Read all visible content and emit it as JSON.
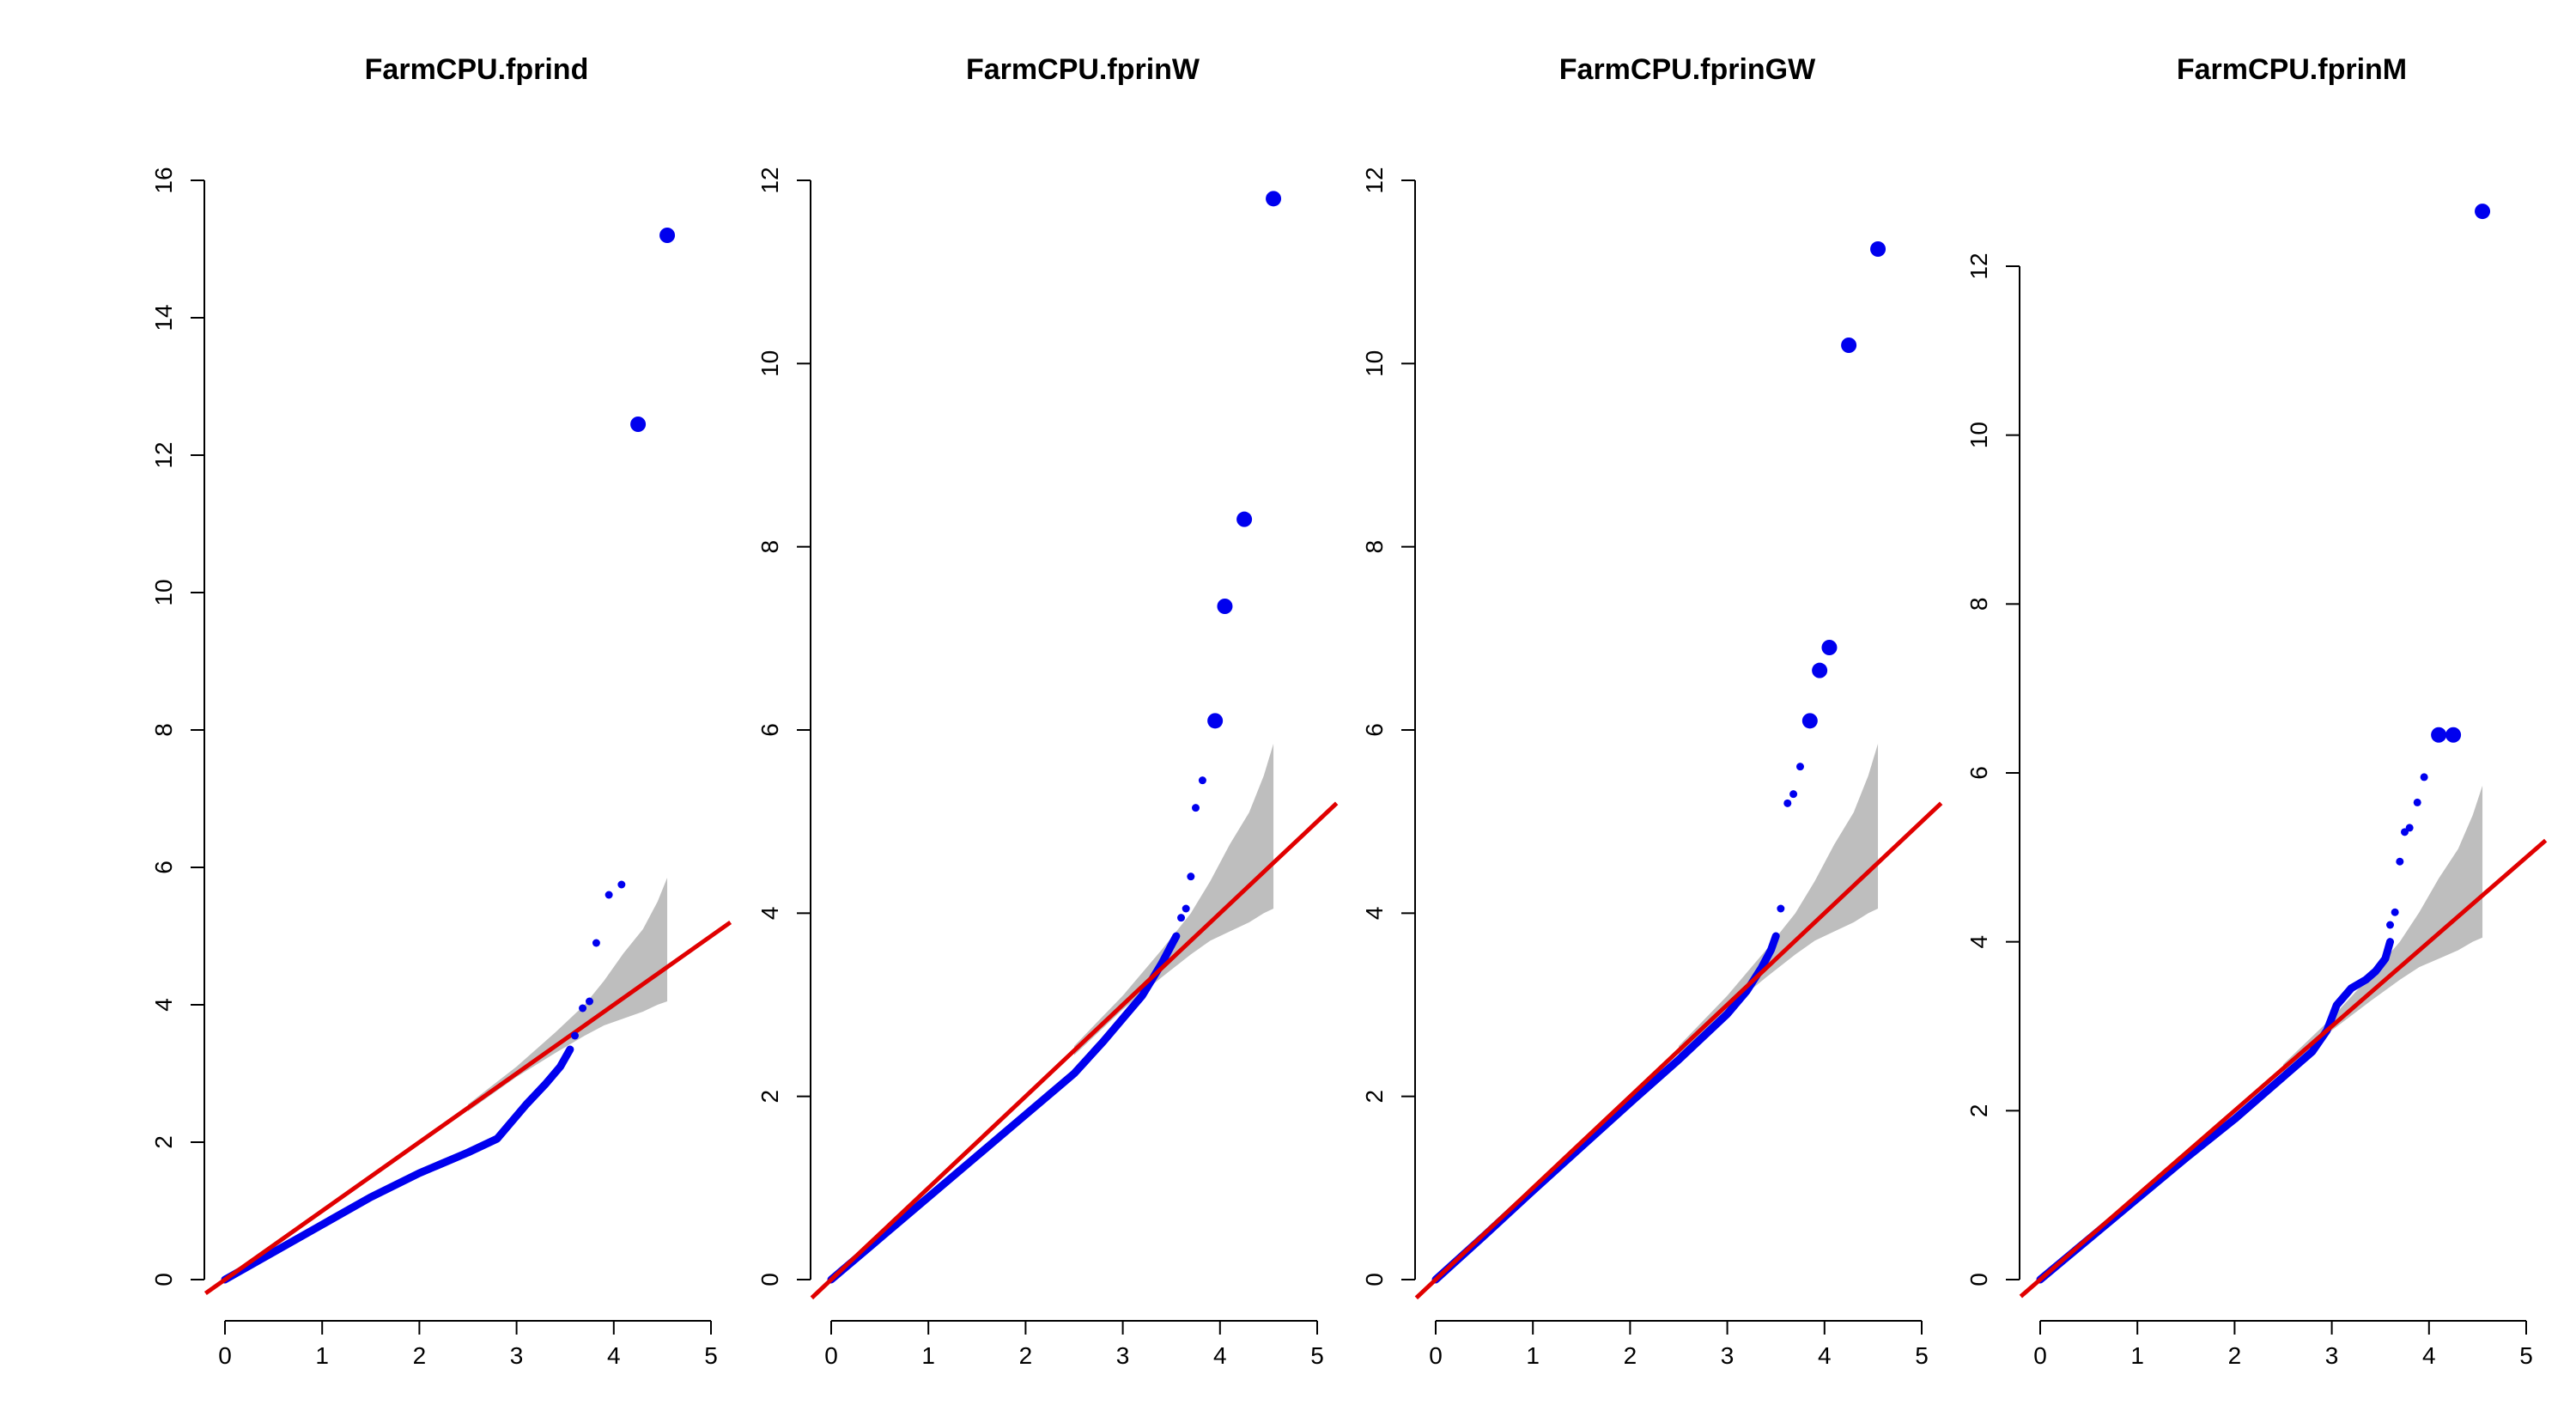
{
  "colors": {
    "points": "#0000ee",
    "reference_line": "#e00000",
    "confidence_band": "#bebebe",
    "axis": "#000000"
  },
  "chart_data": [
    {
      "type": "scatter",
      "title": "FarmCPU.fprind",
      "xlabel": "",
      "ylabel": "",
      "xlim": [
        0,
        5
      ],
      "ylim": [
        0,
        16
      ],
      "x_ticks": [
        "0",
        "1",
        "2",
        "3",
        "4",
        "5"
      ],
      "y_ticks": [
        "0",
        "2",
        "4",
        "6",
        "8",
        "10",
        "12",
        "14",
        "16"
      ],
      "reference_line": {
        "slope": 1,
        "intercept": 0
      },
      "confidence_band": {
        "x": [
          2.5,
          3.0,
          3.4,
          3.7,
          3.9,
          4.1,
          4.3,
          4.45,
          4.55
        ],
        "upper": [
          2.55,
          3.1,
          3.6,
          4.0,
          4.35,
          4.75,
          5.1,
          5.5,
          5.85
        ],
        "lower": [
          2.45,
          2.95,
          3.3,
          3.55,
          3.7,
          3.8,
          3.9,
          4.0,
          4.05
        ]
      },
      "main_curve": {
        "x": [
          0,
          0.5,
          1.0,
          1.5,
          2.0,
          2.5,
          2.8,
          2.95,
          3.1,
          3.3,
          3.45,
          3.55
        ],
        "y": [
          0,
          0.4,
          0.8,
          1.2,
          1.55,
          1.85,
          2.05,
          2.3,
          2.55,
          2.85,
          3.1,
          3.35
        ]
      },
      "outliers": {
        "x": [
          3.6,
          3.68,
          3.75,
          3.82,
          3.95,
          4.08,
          4.25,
          4.55
        ],
        "y": [
          3.55,
          3.95,
          4.05,
          4.9,
          5.6,
          5.75,
          12.45,
          15.2
        ],
        "size": [
          1,
          1,
          1,
          1,
          1,
          1,
          2,
          2
        ]
      }
    },
    {
      "type": "scatter",
      "title": "FarmCPU.fprinW",
      "xlabel": "",
      "ylabel": "",
      "xlim": [
        0,
        5
      ],
      "ylim": [
        0,
        12
      ],
      "x_ticks": [
        "0",
        "1",
        "2",
        "3",
        "4",
        "5"
      ],
      "y_ticks": [
        "0",
        "2",
        "4",
        "6",
        "8",
        "10",
        "12"
      ],
      "reference_line": {
        "slope": 1,
        "intercept": 0
      },
      "confidence_band": {
        "x": [
          2.5,
          3.0,
          3.4,
          3.7,
          3.9,
          4.1,
          4.3,
          4.45,
          4.55
        ],
        "upper": [
          2.55,
          3.1,
          3.6,
          4.0,
          4.35,
          4.75,
          5.1,
          5.5,
          5.85
        ],
        "lower": [
          2.45,
          2.95,
          3.3,
          3.55,
          3.7,
          3.8,
          3.9,
          4.0,
          4.05
        ]
      },
      "main_curve": {
        "x": [
          0,
          0.5,
          1.0,
          1.5,
          2.0,
          2.5,
          2.8,
          3.0,
          3.2,
          3.4,
          3.5,
          3.55
        ],
        "y": [
          0,
          0.45,
          0.9,
          1.35,
          1.8,
          2.25,
          2.6,
          2.85,
          3.1,
          3.45,
          3.65,
          3.75
        ]
      },
      "outliers": {
        "x": [
          3.6,
          3.65,
          3.7,
          3.75,
          3.82,
          3.95,
          4.05,
          4.25,
          4.55
        ],
        "y": [
          3.95,
          4.05,
          4.4,
          5.15,
          5.45,
          6.1,
          7.35,
          8.3,
          11.8
        ],
        "size": [
          1,
          1,
          1,
          1,
          1,
          2,
          2,
          2,
          2
        ]
      }
    },
    {
      "type": "scatter",
      "title": "FarmCPU.fprinGW",
      "xlabel": "",
      "ylabel": "",
      "xlim": [
        0,
        5
      ],
      "ylim": [
        0,
        12
      ],
      "x_ticks": [
        "0",
        "1",
        "2",
        "3",
        "4",
        "5"
      ],
      "y_ticks": [
        "0",
        "2",
        "4",
        "6",
        "8",
        "10",
        "12"
      ],
      "reference_line": {
        "slope": 1,
        "intercept": 0
      },
      "confidence_band": {
        "x": [
          2.5,
          3.0,
          3.4,
          3.7,
          3.9,
          4.1,
          4.3,
          4.45,
          4.55
        ],
        "upper": [
          2.55,
          3.1,
          3.6,
          4.0,
          4.35,
          4.75,
          5.1,
          5.5,
          5.85
        ],
        "lower": [
          2.45,
          2.95,
          3.3,
          3.55,
          3.7,
          3.8,
          3.9,
          4.0,
          4.05
        ]
      },
      "main_curve": {
        "x": [
          0,
          0.5,
          1.0,
          1.5,
          2.0,
          2.5,
          3.0,
          3.2,
          3.35,
          3.45,
          3.5
        ],
        "y": [
          0,
          0.48,
          0.97,
          1.45,
          1.93,
          2.4,
          2.9,
          3.15,
          3.4,
          3.6,
          3.75
        ]
      },
      "outliers": {
        "x": [
          3.55,
          3.62,
          3.68,
          3.75,
          3.85,
          3.95,
          4.05,
          4.25,
          4.55
        ],
        "y": [
          4.05,
          5.2,
          5.3,
          5.6,
          6.1,
          6.65,
          6.9,
          10.2,
          11.25
        ],
        "size": [
          1,
          1,
          1,
          1,
          2,
          2,
          2,
          2,
          2
        ]
      }
    },
    {
      "type": "scatter",
      "title": "FarmCPU.fprinM",
      "xlabel": "",
      "ylabel": "",
      "xlim": [
        0,
        5
      ],
      "ylim": [
        0,
        12
      ],
      "x_ticks": [
        "0",
        "1",
        "2",
        "3",
        "4",
        "5"
      ],
      "y_ticks": [
        "0",
        "2",
        "4",
        "6",
        "8",
        "10",
        "12"
      ],
      "reference_line": {
        "slope": 1,
        "intercept": 0
      },
      "confidence_band": {
        "x": [
          2.5,
          3.0,
          3.4,
          3.7,
          3.9,
          4.1,
          4.3,
          4.45,
          4.55
        ],
        "upper": [
          2.55,
          3.1,
          3.6,
          4.0,
          4.35,
          4.75,
          5.1,
          5.5,
          5.85
        ],
        "lower": [
          2.45,
          2.95,
          3.3,
          3.55,
          3.7,
          3.8,
          3.9,
          4.0,
          4.05
        ]
      },
      "main_curve": {
        "x": [
          0,
          0.5,
          1.0,
          1.5,
          2.0,
          2.5,
          2.8,
          2.95,
          3.05,
          3.2,
          3.35,
          3.45,
          3.55,
          3.6
        ],
        "y": [
          0,
          0.48,
          0.96,
          1.44,
          1.9,
          2.4,
          2.7,
          2.95,
          3.25,
          3.45,
          3.55,
          3.65,
          3.8,
          4.0
        ]
      },
      "outliers": {
        "x": [
          3.6,
          3.65,
          3.7,
          3.75,
          3.8,
          3.88,
          3.95,
          4.1,
          4.25,
          4.55
        ],
        "y": [
          4.2,
          4.35,
          4.95,
          5.3,
          5.35,
          5.65,
          5.95,
          6.45,
          6.45,
          12.65
        ],
        "size": [
          1,
          1,
          1,
          1,
          1,
          1,
          1,
          2,
          2,
          2
        ]
      }
    }
  ]
}
